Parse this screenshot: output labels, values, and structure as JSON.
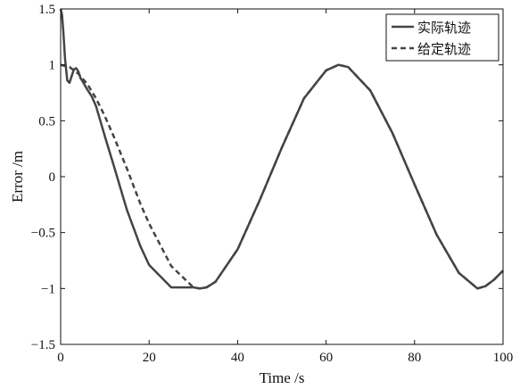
{
  "chart_data": {
    "type": "line",
    "xlabel": "Time /s",
    "ylabel": "Error /m",
    "xlim": [
      0,
      100
    ],
    "ylim": [
      -1.5,
      1.5
    ],
    "xticks": [
      0,
      20,
      40,
      60,
      80,
      100
    ],
    "yticks": [
      -1.5,
      -1,
      -0.5,
      0,
      0.5,
      1,
      1.5
    ],
    "xtick_labels": [
      "0",
      "20",
      "40",
      "60",
      "80",
      "100"
    ],
    "ytick_labels": [
      "−1.5",
      "−1",
      "−0.5",
      "0",
      "0.5",
      "1",
      "1.5"
    ],
    "grid": false,
    "legend_position": "top-right",
    "line_color": "#444444",
    "series": [
      {
        "name": "实际轨迹",
        "style": "solid",
        "x": [
          0,
          0.3,
          0.6,
          1.0,
          1.5,
          2.0,
          2.5,
          3.0,
          3.5,
          4.0,
          4.5,
          5.0,
          6,
          7,
          8,
          10,
          12,
          15,
          18,
          20,
          25,
          30,
          31.4,
          33,
          35,
          40,
          45,
          50,
          55,
          60,
          62.8,
          65,
          70,
          75,
          80,
          85,
          90,
          94.2,
          96,
          98,
          100
        ],
        "y": [
          1.5,
          1.45,
          1.3,
          1.05,
          0.86,
          0.84,
          0.9,
          0.96,
          0.97,
          0.94,
          0.88,
          0.85,
          0.78,
          0.72,
          0.63,
          0.36,
          0.1,
          -0.3,
          -0.62,
          -0.79,
          -0.99,
          -0.99,
          -1.0,
          -0.99,
          -0.94,
          -0.65,
          -0.21,
          0.26,
          0.7,
          0.95,
          1.0,
          0.98,
          0.77,
          0.39,
          -0.07,
          -0.52,
          -0.86,
          -1.0,
          -0.98,
          -0.92,
          -0.84
        ]
      },
      {
        "name": "给定轨迹",
        "style": "dashed",
        "x": [
          0,
          2,
          4,
          6,
          8,
          10,
          12,
          15,
          18,
          20,
          25,
          30,
          31.4,
          33,
          35,
          40,
          45,
          50,
          55,
          60,
          62.8,
          65,
          70,
          75,
          80,
          85,
          90,
          94.2,
          96,
          98,
          100
        ],
        "y": [
          1.0,
          0.98,
          0.92,
          0.83,
          0.7,
          0.54,
          0.36,
          0.07,
          -0.24,
          -0.42,
          -0.8,
          -0.99,
          -1.0,
          -0.99,
          -0.94,
          -0.65,
          -0.21,
          0.26,
          0.7,
          0.95,
          1.0,
          0.98,
          0.77,
          0.39,
          -0.07,
          -0.52,
          -0.86,
          -1.0,
          -0.98,
          -0.92,
          -0.84
        ]
      }
    ]
  }
}
